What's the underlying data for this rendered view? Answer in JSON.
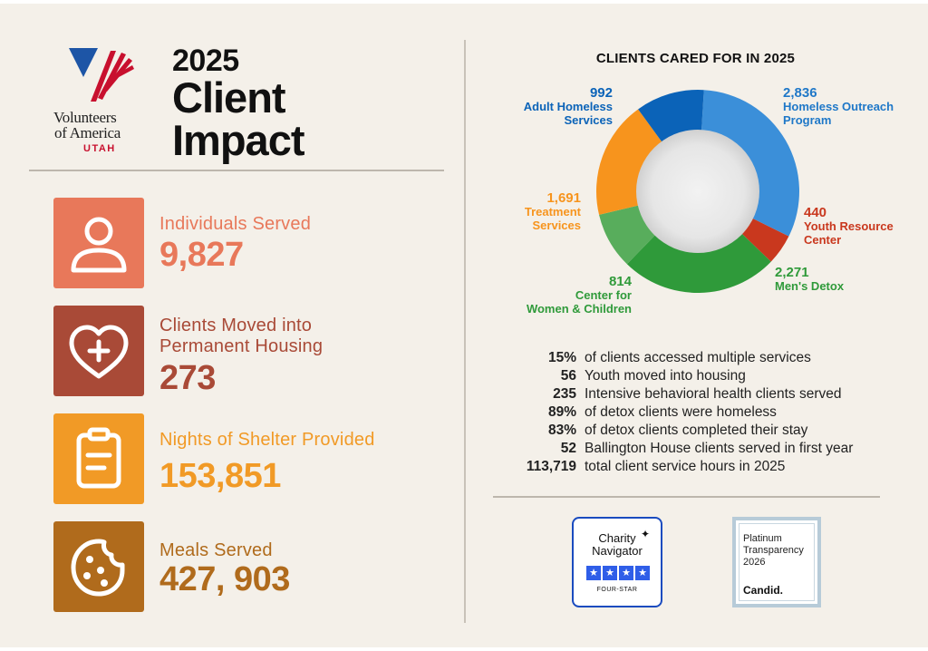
{
  "brand": {
    "line1": "Volunteers",
    "line2": "of America",
    "region": "UTAH"
  },
  "title": {
    "year": "2025",
    "line1": "Client",
    "line2": "Impact"
  },
  "stats": [
    {
      "label": "Individuals Served",
      "value": "9,827",
      "color": "#e8785a",
      "icon": "person-icon"
    },
    {
      "label_line1": "Clients Moved into",
      "label_line2": "Permanent Housing",
      "value": "273",
      "color": "#a94a37",
      "icon": "heart-plus-icon"
    },
    {
      "label": "Nights of Shelter Provided",
      "value": "153,851",
      "color": "#f19a26",
      "icon": "clipboard-icon"
    },
    {
      "label": "Meals Served",
      "value": "427, 903",
      "color": "#b06b1c",
      "icon": "cookie-icon"
    }
  ],
  "chart_data": {
    "type": "pie",
    "title": "CLIENTS CARED FOR IN 2025",
    "slices": [
      {
        "value": 2836,
        "value_label": "2,836",
        "name_line1": "Homeless Outreach",
        "name_line2": "Program",
        "color": "#3b8fd9"
      },
      {
        "value": 440,
        "value_label": "440",
        "name_line1": "Youth Resource",
        "name_line2": "Center",
        "color": "#c9381e"
      },
      {
        "value": 2271,
        "value_label": "2,271",
        "name_line1": "Men's Detox",
        "name_line2": "",
        "color": "#2f9a3a"
      },
      {
        "value": 814,
        "value_label": "814",
        "name_line1": "Center for",
        "name_line2": "Women & Children",
        "color": "#58ad5c"
      },
      {
        "value": 1691,
        "value_label": "1,691",
        "name_line1": "Treatment",
        "name_line2": "Services",
        "color": "#f7941d"
      },
      {
        "value": 992,
        "value_label": "992",
        "name_line1": "Adult Homeless",
        "name_line2": "Services",
        "color": "#0b63b8"
      }
    ]
  },
  "facts": [
    {
      "num": "15%",
      "text": "of clients accessed multiple services"
    },
    {
      "num": "56",
      "text": "Youth moved into housing"
    },
    {
      "num": "235",
      "text": "Intensive behavioral health clients served"
    },
    {
      "num": "89%",
      "text": "of detox clients were homeless"
    },
    {
      "num": "83%",
      "text": "of detox clients completed their stay"
    },
    {
      "num": "52",
      "text": "Ballington House clients served in first year"
    },
    {
      "num": "113,719",
      "text": "total client service hours in 2025"
    }
  ],
  "badges": {
    "charity_navigator": {
      "line1": "Charity",
      "line2": "Navigator",
      "rating": "FOUR-STAR",
      "stars": [
        "★",
        "★",
        "★",
        "★"
      ]
    },
    "candid": {
      "line1": "Platinum",
      "line2": "Transparency",
      "line3": "2026",
      "brand": "Candid."
    }
  }
}
